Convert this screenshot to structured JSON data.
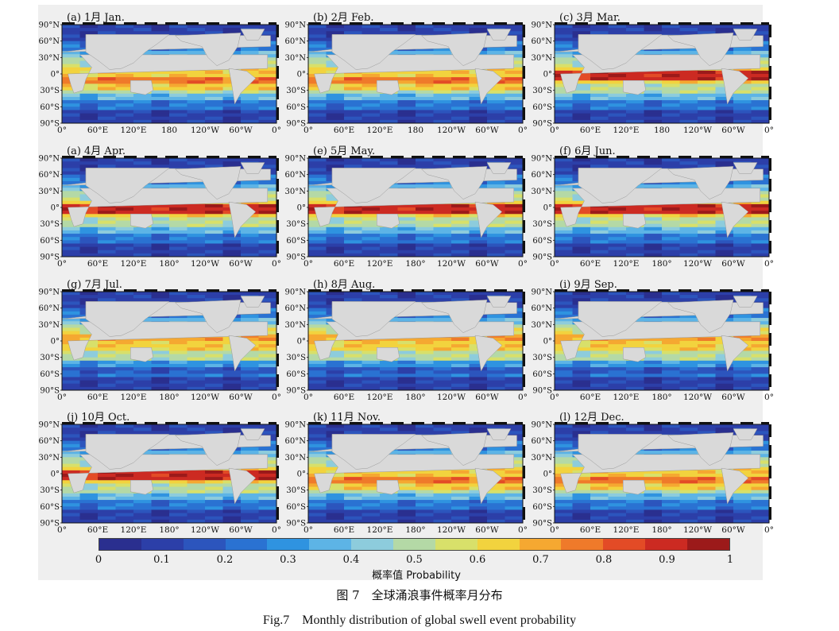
{
  "panels": [
    {
      "label": "(a) 1月 Jan.",
      "peak": "south"
    },
    {
      "label": "(b) 2月 Feb.",
      "peak": "south"
    },
    {
      "label": "(c) 3月 Mar.",
      "peak": "equator"
    },
    {
      "label": "(a) 4月 Apr.",
      "peak": "equator"
    },
    {
      "label": "(e) 5月 May.",
      "peak": "equator"
    },
    {
      "label": "(f) 6月 Jun.",
      "peak": "equator"
    },
    {
      "label": "(g) 7月 Jul.",
      "peak": "north"
    },
    {
      "label": "(h) 8月 Aug.",
      "peak": "north"
    },
    {
      "label": "(i) 9月 Sep.",
      "peak": "north"
    },
    {
      "label": "(j) 10月 Oct.",
      "peak": "equator"
    },
    {
      "label": "(k) 11月 Nov.",
      "peak": "south"
    },
    {
      "label": "(l) 12月 Dec.",
      "peak": "south"
    }
  ],
  "axis": {
    "lat_labels": [
      "90°N",
      "60°N",
      "30°N",
      "0°",
      "30°S",
      "60°S",
      "90°S"
    ],
    "lon_labels_a": [
      "0°",
      "60°E",
      "120°E",
      "180",
      "120°W",
      "60°W",
      "0°"
    ],
    "lon_labels_b": [
      "0°",
      "60°E",
      "120°E",
      "180°",
      "120°W",
      "60°W",
      "0°"
    ],
    "lon_label_variant_by_panel": [
      "a",
      "a",
      "a",
      "b",
      "b",
      "b",
      "b",
      "b",
      "b",
      "b",
      "b",
      "b"
    ]
  },
  "colorbar": {
    "ticks": [
      "0",
      "0.1",
      "0.2",
      "0.3",
      "0.4",
      "0.5",
      "0.6",
      "0.7",
      "0.8",
      "0.9",
      "1"
    ],
    "label": "概率值 Probability",
    "colors": [
      "#2a2f8f",
      "#2c3fa8",
      "#2c55bd",
      "#2a72d2",
      "#2f93e0",
      "#5db4e6",
      "#8dccdc",
      "#b4d9a6",
      "#d8e06a",
      "#f2d33e",
      "#f5a831",
      "#ef7a2a",
      "#e34b26",
      "#cc2a22",
      "#9c1a1a"
    ]
  },
  "caption_cn": "图 7　全球涌浪事件概率月分布",
  "caption_en": "Fig.7　Monthly distribution of global swell event probability",
  "colors": {
    "land": "#d9d9d9",
    "frame_bg": "#efefef"
  }
}
